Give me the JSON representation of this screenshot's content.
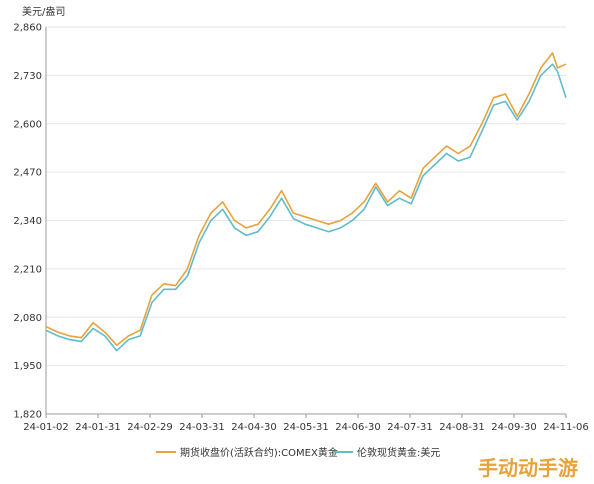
{
  "chart_data": {
    "type": "line",
    "unit_label": "美元/盎司",
    "ylim": [
      1820,
      2860
    ],
    "y_ticks": [
      "1,820",
      "1,950",
      "2,080",
      "2,210",
      "2,340",
      "2,470",
      "2,600",
      "2,730",
      "2,860"
    ],
    "x_ticks": [
      "24-01-02",
      "24-01-31",
      "24-02-29",
      "24-03-31",
      "24-04-30",
      "24-05-31",
      "24-06-30",
      "24-07-31",
      "24-08-31",
      "24-09-30",
      "24-11-06"
    ],
    "grid": "horizontal",
    "legend_position": "bottom",
    "x": [
      "2024-01-02",
      "2024-01-09",
      "2024-01-16",
      "2024-01-23",
      "2024-01-30",
      "2024-02-06",
      "2024-02-13",
      "2024-02-20",
      "2024-02-27",
      "2024-03-05",
      "2024-03-12",
      "2024-03-19",
      "2024-03-26",
      "2024-04-02",
      "2024-04-09",
      "2024-04-16",
      "2024-04-23",
      "2024-04-30",
      "2024-05-07",
      "2024-05-14",
      "2024-05-21",
      "2024-05-28",
      "2024-06-04",
      "2024-06-11",
      "2024-06-18",
      "2024-06-25",
      "2024-07-02",
      "2024-07-09",
      "2024-07-16",
      "2024-07-23",
      "2024-07-30",
      "2024-08-06",
      "2024-08-13",
      "2024-08-20",
      "2024-08-27",
      "2024-09-03",
      "2024-09-10",
      "2024-09-17",
      "2024-09-24",
      "2024-10-01",
      "2024-10-08",
      "2024-10-15",
      "2024-10-22",
      "2024-10-29",
      "2024-11-01",
      "2024-11-06"
    ],
    "series": [
      {
        "name": "期货收盘价(活跃合约):COMEX黄金",
        "color": "#e8a23c",
        "values": [
          2055,
          2040,
          2030,
          2025,
          2065,
          2040,
          2005,
          2030,
          2045,
          2140,
          2170,
          2165,
          2210,
          2300,
          2360,
          2390,
          2340,
          2320,
          2330,
          2370,
          2420,
          2360,
          2350,
          2340,
          2330,
          2340,
          2360,
          2390,
          2440,
          2390,
          2420,
          2400,
          2480,
          2510,
          2540,
          2520,
          2540,
          2600,
          2670,
          2680,
          2620,
          2680,
          2750,
          2790,
          2750,
          2760
        ]
      },
      {
        "name": "伦敦现货黄金:美元",
        "color": "#5fbcc9",
        "values": [
          2045,
          2030,
          2020,
          2015,
          2050,
          2030,
          1990,
          2020,
          2030,
          2120,
          2155,
          2155,
          2190,
          2280,
          2340,
          2370,
          2320,
          2300,
          2310,
          2350,
          2400,
          2345,
          2330,
          2320,
          2310,
          2320,
          2340,
          2370,
          2430,
          2380,
          2400,
          2385,
          2460,
          2490,
          2520,
          2500,
          2510,
          2580,
          2650,
          2660,
          2610,
          2660,
          2730,
          2760,
          2740,
          2670
        ]
      }
    ]
  },
  "watermark": "手动动手游"
}
